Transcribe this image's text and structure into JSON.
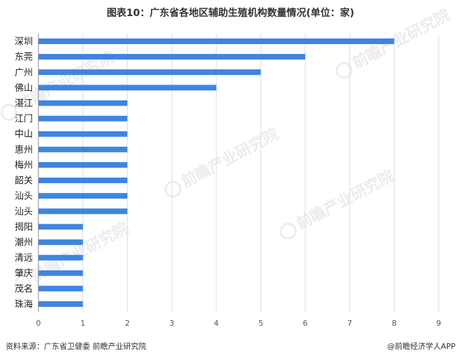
{
  "title": "图表10：广东省各地区辅助生殖机构数量情况(单位：家)",
  "source": "资料来源：广东省卫健委 前瞻产业研究院",
  "credit": "@前瞻经济学人APP",
  "watermark_text": "前瞻产业研究院",
  "colors": {
    "bar": "#3d85e0",
    "grid": "#dddddd",
    "axis": "#888888"
  },
  "chart_data": {
    "type": "bar",
    "orientation": "horizontal",
    "title": "图表10：广东省各地区辅助生殖机构数量情况(单位：家)",
    "categories": [
      "深圳",
      "东莞",
      "广州",
      "佛山",
      "湛江",
      "江门",
      "中山",
      "惠州",
      "梅州",
      "韶关",
      "汕头",
      "汕头",
      "揭阳",
      "潮州",
      "清远",
      "肇庆",
      "茂名",
      "珠海"
    ],
    "values": [
      8,
      6,
      5,
      4,
      2,
      2,
      2,
      2,
      2,
      2,
      2,
      2,
      1,
      1,
      1,
      1,
      1,
      1
    ],
    "xticks": [
      0,
      1,
      2,
      3,
      4,
      5,
      6,
      7,
      8,
      9
    ],
    "xlim": [
      0,
      9
    ],
    "grid": true,
    "xlabel": "",
    "ylabel": ""
  }
}
